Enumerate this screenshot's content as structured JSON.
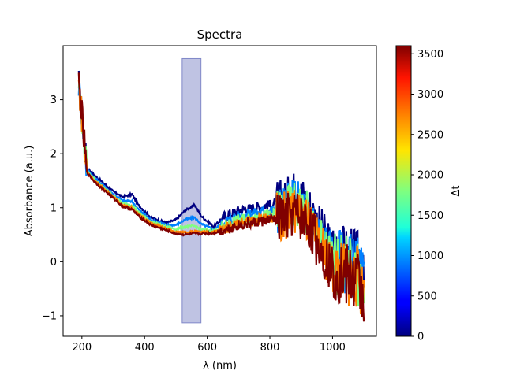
{
  "chart_data": {
    "type": "line",
    "title": "Spectra",
    "xlabel": "λ (nm)",
    "ylabel": "Absorbance (a.u.)",
    "xlim": [
      140,
      1140
    ],
    "ylim": [
      -1.38,
      4.0
    ],
    "xticks": [
      200,
      400,
      600,
      800,
      1000
    ],
    "yticks": [
      -1,
      0,
      1,
      2,
      3
    ],
    "xtick_labels": [
      "200",
      "400",
      "600",
      "800",
      "1000"
    ],
    "ytick_labels": [
      "−1",
      "0",
      "1",
      "2",
      "3"
    ],
    "highlight_region": {
      "x_range": [
        520,
        580
      ],
      "y_range": [
        -1.13,
        3.76
      ],
      "color": "#8088c8"
    },
    "colorbar": {
      "label": "Δt",
      "range": [
        0,
        3600
      ],
      "ticks": [
        0,
        500,
        1000,
        1500,
        2000,
        2500,
        3000,
        3500
      ],
      "tick_labels": [
        "0",
        "500",
        "1000",
        "1500",
        "2000",
        "2500",
        "3000",
        "3500"
      ],
      "colormap": "jet"
    },
    "series_description": "Spectra from 190 to 1100 nm over Δt 0–3600",
    "series": [
      {
        "name": "Δt=0",
        "t": 0,
        "x": [
          190,
          200,
          215,
          240,
          270,
          300,
          330,
          360,
          380,
          420,
          470,
          500,
          530,
          560,
          580,
          620,
          660,
          700,
          750,
          800,
          850,
          880,
          920,
          960,
          1000,
          1040,
          1080,
          1100
        ],
        "y": [
          3.3,
          2.7,
          1.75,
          1.6,
          1.45,
          1.3,
          1.2,
          1.25,
          1.05,
          0.82,
          0.72,
          0.78,
          0.95,
          1.05,
          0.85,
          0.65,
          0.85,
          0.95,
          1.0,
          1.05,
          1.1,
          1.3,
          1.1,
          0.6,
          0.2,
          0.1,
          0.0,
          -0.5
        ]
      },
      {
        "name": "Δt=900",
        "t": 900,
        "x": [
          190,
          200,
          215,
          240,
          270,
          300,
          330,
          360,
          380,
          420,
          470,
          500,
          530,
          560,
          580,
          620,
          660,
          700,
          750,
          800,
          850,
          880,
          920,
          960,
          1000,
          1040,
          1080,
          1100
        ],
        "y": [
          3.3,
          2.7,
          1.72,
          1.55,
          1.4,
          1.25,
          1.13,
          1.12,
          0.97,
          0.78,
          0.68,
          0.68,
          0.78,
          0.82,
          0.7,
          0.6,
          0.75,
          0.85,
          0.9,
          0.95,
          1.0,
          1.15,
          0.95,
          0.5,
          0.1,
          0.0,
          -0.1,
          -0.5
        ]
      },
      {
        "name": "Δt=1800",
        "t": 1800,
        "x": [
          190,
          200,
          215,
          240,
          270,
          300,
          330,
          360,
          380,
          420,
          470,
          500,
          530,
          560,
          580,
          620,
          660,
          700,
          750,
          800,
          850,
          880,
          920,
          960,
          1000,
          1040,
          1080,
          1100
        ],
        "y": [
          3.3,
          2.7,
          1.7,
          1.52,
          1.37,
          1.22,
          1.08,
          1.05,
          0.92,
          0.74,
          0.64,
          0.6,
          0.65,
          0.66,
          0.6,
          0.57,
          0.68,
          0.78,
          0.82,
          0.88,
          0.92,
          1.05,
          0.85,
          0.4,
          0.0,
          -0.1,
          -0.2,
          -0.55
        ]
      },
      {
        "name": "Δt=2700",
        "t": 2700,
        "x": [
          190,
          200,
          215,
          240,
          270,
          300,
          330,
          360,
          380,
          420,
          470,
          500,
          530,
          560,
          580,
          620,
          660,
          700,
          750,
          800,
          850,
          880,
          920,
          960,
          1000,
          1040,
          1080,
          1100
        ],
        "y": [
          3.3,
          2.7,
          1.68,
          1.5,
          1.35,
          1.2,
          1.05,
          1.0,
          0.88,
          0.71,
          0.61,
          0.55,
          0.55,
          0.56,
          0.55,
          0.55,
          0.63,
          0.72,
          0.76,
          0.82,
          0.85,
          0.95,
          0.75,
          0.3,
          -0.1,
          -0.2,
          -0.3,
          -0.6
        ]
      },
      {
        "name": "Δt=3600",
        "t": 3600,
        "x": [
          190,
          200,
          215,
          240,
          270,
          300,
          330,
          360,
          380,
          420,
          470,
          500,
          530,
          560,
          580,
          620,
          660,
          700,
          750,
          800,
          850,
          880,
          920,
          960,
          1000,
          1040,
          1080,
          1100
        ],
        "y": [
          3.3,
          2.7,
          1.66,
          1.48,
          1.33,
          1.18,
          1.02,
          0.97,
          0.85,
          0.68,
          0.58,
          0.52,
          0.5,
          0.52,
          0.52,
          0.53,
          0.6,
          0.68,
          0.72,
          0.78,
          0.8,
          0.9,
          0.7,
          0.25,
          -0.15,
          -0.25,
          -0.35,
          -0.65
        ]
      }
    ]
  }
}
